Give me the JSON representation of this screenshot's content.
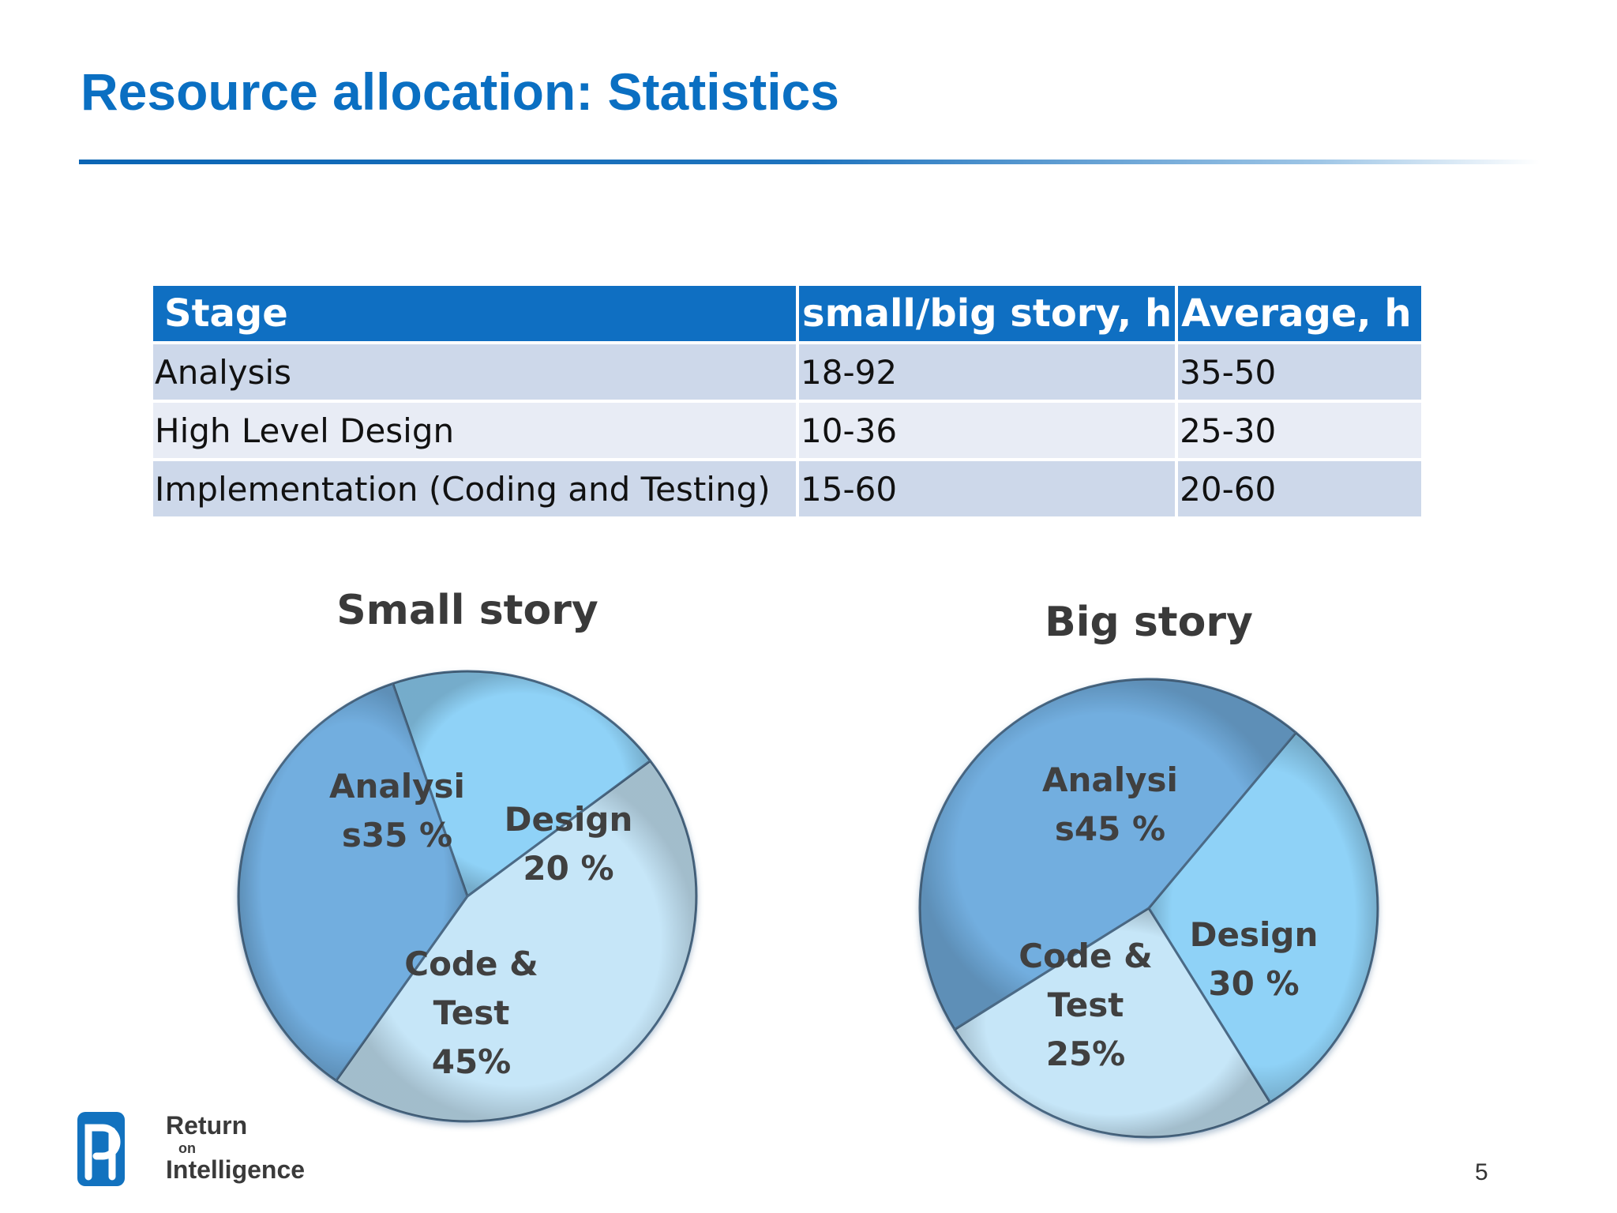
{
  "slide": {
    "title": "Resource allocation: Statistics",
    "page_number": "5"
  },
  "table": {
    "headers": [
      "Stage",
      "small/big story, h",
      "Average, h"
    ],
    "rows": [
      [
        "Analysis",
        "18-92",
        "35-50"
      ],
      [
        "High Level Design",
        "10-36",
        "25-30"
      ],
      [
        "Implementation (Coding and Testing)",
        "15-60",
        "20-60"
      ]
    ]
  },
  "chart_data": [
    {
      "type": "pie",
      "title": "Small story",
      "slices": [
        {
          "label_lines": [
            "Analysi",
            "s35 %"
          ],
          "value": 35,
          "color": "#72aedf"
        },
        {
          "label_lines": [
            "Design",
            "20 %"
          ],
          "value": 20,
          "color": "#8fd2f7"
        },
        {
          "label_lines": [
            "Code &",
            "Test",
            "45%"
          ],
          "value": 45,
          "color": "#c6e6f8"
        }
      ]
    },
    {
      "type": "pie",
      "title": "Big story",
      "slices": [
        {
          "label_lines": [
            "Analysi",
            "s45 %"
          ],
          "value": 45,
          "color": "#72aedf"
        },
        {
          "label_lines": [
            "Design",
            "30 %"
          ],
          "value": 30,
          "color": "#8fd2f7"
        },
        {
          "label_lines": [
            "Code &",
            "Test",
            "25%"
          ],
          "value": 25,
          "color": "#c6e6f8"
        }
      ]
    }
  ],
  "logo": {
    "line1": "Return",
    "line2": "on",
    "line3": "Intelligence",
    "mark_color": "#1272bf"
  }
}
